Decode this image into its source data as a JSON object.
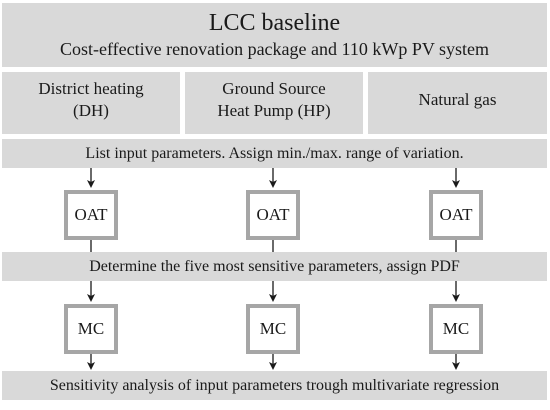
{
  "baseline": {
    "title": "LCC baseline",
    "subtitle": "Cost-effective renovation package and 110 kWp PV system"
  },
  "options": [
    {
      "line1": "District heating",
      "line2": "(DH)"
    },
    {
      "line1": "Ground Source",
      "line2": "Heat Pump (HP)"
    },
    {
      "line1": "Natural gas",
      "line2": ""
    }
  ],
  "steps": {
    "list_inputs": "List input parameters. Assign min./max. range of variation.",
    "determine_sensitive": "Determine the five most sensitive parameters, assign PDF",
    "sensitivity_analysis": "Sensitivity analysis of input parameters trough multivariate regression"
  },
  "boxes": {
    "oat": "OAT",
    "mc": "MC"
  },
  "colors": {
    "band_fill": "#d9d9d9",
    "box_border": "#a6a6a6",
    "line": "#1a1a1a"
  }
}
